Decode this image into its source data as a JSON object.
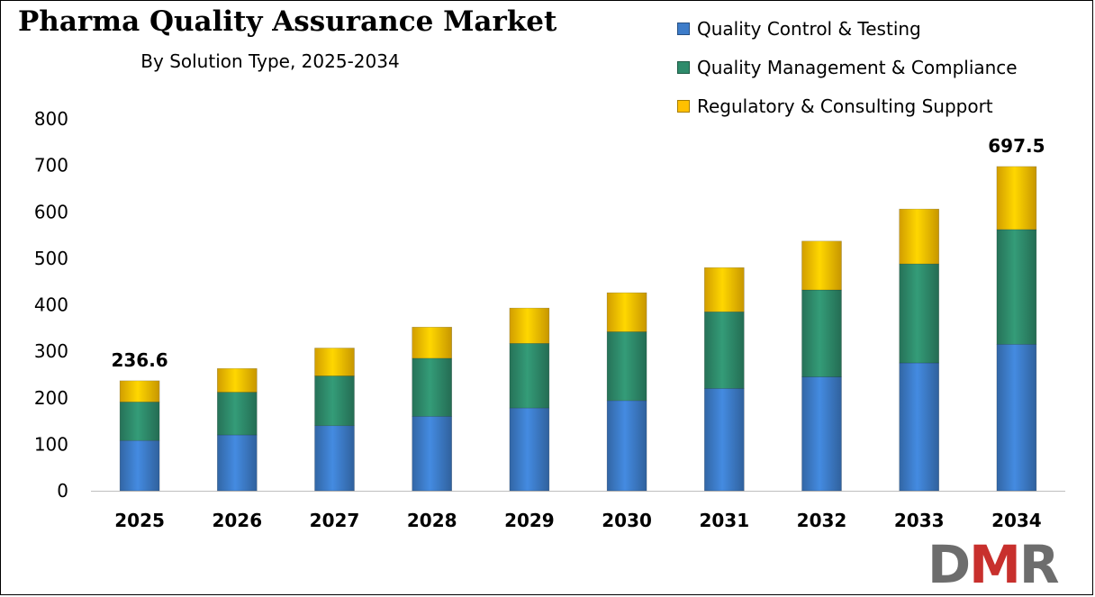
{
  "chart_data": {
    "type": "bar",
    "stacked": true,
    "title": "Pharma Quality Assurance Market",
    "subtitle": "By Solution Type, 2025-2034",
    "categories": [
      "2025",
      "2026",
      "2027",
      "2028",
      "2029",
      "2030",
      "2031",
      "2032",
      "2033",
      "2034"
    ],
    "series": [
      {
        "name": "Quality Control & Testing",
        "color": "#3d7cc9",
        "values": [
          108,
          120,
          140,
          160,
          178,
          194,
          220,
          245,
          275,
          315
        ]
      },
      {
        "name": "Quality Management & Compliance",
        "color": "#2e8b6b",
        "values": [
          83,
          92,
          107,
          125,
          139,
          148,
          165,
          187,
          213,
          247
        ]
      },
      {
        "name": "Regulatory & Consulting Support",
        "color": "#ffc000",
        "values": [
          45.6,
          51,
          60,
          67,
          76,
          84,
          95,
          105,
          118,
          135.5
        ]
      }
    ],
    "data_labels": [
      {
        "category": "2025",
        "text": "236.6"
      },
      {
        "category": "2034",
        "text": "697.5"
      }
    ],
    "ylim": [
      0,
      800
    ],
    "yticks": [
      0,
      100,
      200,
      300,
      400,
      500,
      600,
      700,
      800
    ],
    "grid": false,
    "legend": "top-right",
    "xlabel": "",
    "ylabel": ""
  },
  "logo": {
    "d": "D",
    "m": "M",
    "r": "R"
  }
}
